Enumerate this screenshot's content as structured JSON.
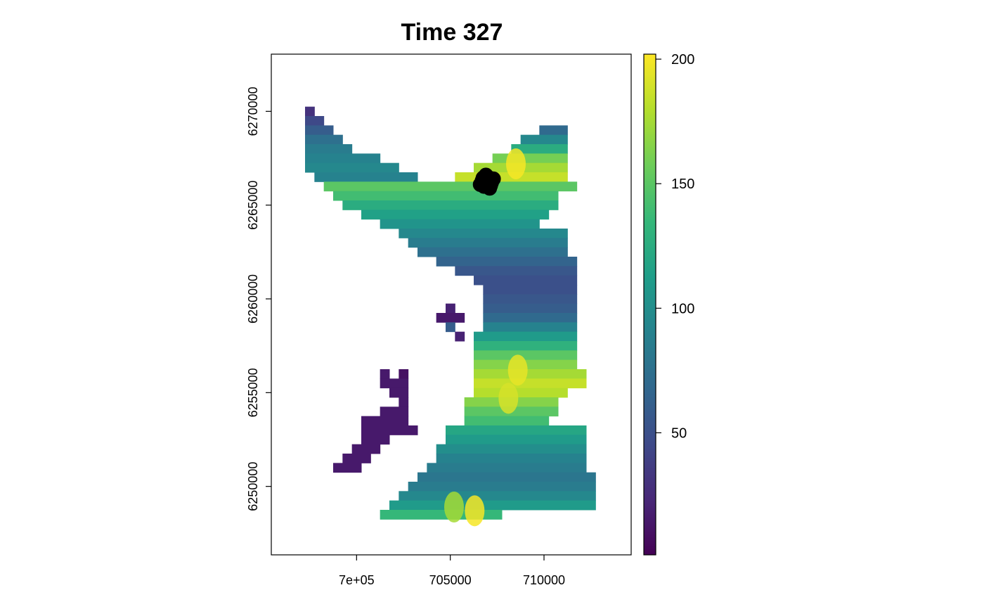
{
  "chart_data": {
    "type": "heatmap",
    "title": "Time 327",
    "xlabel": "",
    "ylabel": "",
    "xlim": [
      695450,
      714650
    ],
    "ylim": [
      6246350,
      6273050
    ],
    "x_ticks": [
      700000,
      705000,
      710000
    ],
    "x_tick_labels": [
      "7e+05",
      "705000",
      "710000"
    ],
    "y_ticks": [
      6250000,
      6255000,
      6260000,
      6265000,
      6270000
    ],
    "y_tick_labels": [
      "6250000",
      "6255000",
      "6260000",
      "6265000",
      "6270000"
    ],
    "color_scale": {
      "palette": "viridis",
      "min": 1,
      "max": 202,
      "ticks": [
        50,
        100,
        150,
        200
      ],
      "tick_labels": [
        "50",
        "100",
        "150",
        "200"
      ],
      "colors": [
        "#440154",
        "#482878",
        "#3E4A89",
        "#31688E",
        "#26828E",
        "#1F9E89",
        "#35B779",
        "#6DCD59",
        "#B4DE2C",
        "#FDE725"
      ]
    },
    "legend_position": "right",
    "grid": false,
    "raster_cell_size_m": 500,
    "raster_rows": [
      {
        "y": 6270000,
        "segments": [
          {
            "x0": 697250,
            "x1": 697750,
            "value": 30
          }
        ]
      },
      {
        "y": 6269500,
        "segments": [
          {
            "x0": 697250,
            "x1": 698250,
            "value": 45
          }
        ]
      },
      {
        "y": 6269000,
        "segments": [
          {
            "x0": 697250,
            "x1": 698750,
            "value": 60
          },
          {
            "x0": 709750,
            "x1": 711250,
            "value": 70
          }
        ]
      },
      {
        "y": 6268500,
        "segments": [
          {
            "x0": 697250,
            "x1": 699250,
            "value": 75
          },
          {
            "x0": 708750,
            "x1": 711250,
            "value": 95
          }
        ]
      },
      {
        "y": 6268000,
        "segments": [
          {
            "x0": 697250,
            "x1": 699750,
            "value": 85
          },
          {
            "x0": 708250,
            "x1": 711250,
            "value": 125
          }
        ]
      },
      {
        "y": 6267500,
        "segments": [
          {
            "x0": 697250,
            "x1": 701250,
            "value": 90
          },
          {
            "x0": 707250,
            "x1": 711250,
            "value": 160
          }
        ]
      },
      {
        "y": 6267000,
        "segments": [
          {
            "x0": 697250,
            "x1": 702250,
            "value": 95
          },
          {
            "x0": 706250,
            "x1": 711250,
            "value": 175
          }
        ]
      },
      {
        "y": 6266500,
        "segments": [
          {
            "x0": 697750,
            "x1": 703250,
            "value": 90
          },
          {
            "x0": 705250,
            "x1": 711250,
            "value": 185
          }
        ]
      },
      {
        "y": 6266000,
        "segments": [
          {
            "x0": 698250,
            "x1": 711750,
            "value": 150
          }
        ]
      },
      {
        "y": 6265500,
        "segments": [
          {
            "x0": 698750,
            "x1": 710750,
            "value": 140
          }
        ]
      },
      {
        "y": 6265000,
        "segments": [
          {
            "x0": 699250,
            "x1": 710750,
            "value": 125
          }
        ]
      },
      {
        "y": 6264500,
        "segments": [
          {
            "x0": 700250,
            "x1": 710250,
            "value": 115
          }
        ]
      },
      {
        "y": 6264000,
        "segments": [
          {
            "x0": 701250,
            "x1": 709750,
            "value": 105
          }
        ]
      },
      {
        "y": 6263500,
        "segments": [
          {
            "x0": 702250,
            "x1": 711250,
            "value": 95
          }
        ]
      },
      {
        "y": 6263000,
        "segments": [
          {
            "x0": 702750,
            "x1": 711250,
            "value": 85
          }
        ]
      },
      {
        "y": 6262500,
        "segments": [
          {
            "x0": 703250,
            "x1": 711250,
            "value": 75
          }
        ]
      },
      {
        "y": 6262000,
        "segments": [
          {
            "x0": 704250,
            "x1": 711750,
            "value": 65
          }
        ]
      },
      {
        "y": 6261500,
        "segments": [
          {
            "x0": 705250,
            "x1": 711750,
            "value": 55
          }
        ]
      },
      {
        "y": 6261000,
        "segments": [
          {
            "x0": 706250,
            "x1": 711750,
            "value": 50
          }
        ]
      },
      {
        "y": 6260500,
        "segments": [
          {
            "x0": 706750,
            "x1": 711750,
            "value": 50
          }
        ]
      },
      {
        "y": 6260000,
        "segments": [
          {
            "x0": 706750,
            "x1": 711750,
            "value": 55
          }
        ]
      },
      {
        "y": 6259500,
        "segments": [
          {
            "x0": 704750,
            "x1": 705250,
            "value": 20
          },
          {
            "x0": 706750,
            "x1": 711750,
            "value": 60
          }
        ]
      },
      {
        "y": 6259000,
        "segments": [
          {
            "x0": 704250,
            "x1": 705750,
            "value": 15
          },
          {
            "x0": 706750,
            "x1": 711750,
            "value": 70
          }
        ]
      },
      {
        "y": 6258500,
        "segments": [
          {
            "x0": 704750,
            "x1": 705250,
            "value": 60
          },
          {
            "x0": 706750,
            "x1": 711750,
            "value": 90
          }
        ]
      },
      {
        "y": 6258000,
        "segments": [
          {
            "x0": 705250,
            "x1": 705750,
            "value": 20
          },
          {
            "x0": 706250,
            "x1": 711750,
            "value": 110
          }
        ]
      },
      {
        "y": 6257500,
        "segments": [
          {
            "x0": 706250,
            "x1": 711750,
            "value": 130
          }
        ]
      },
      {
        "y": 6257000,
        "segments": [
          {
            "x0": 706250,
            "x1": 711750,
            "value": 150
          }
        ]
      },
      {
        "y": 6256500,
        "segments": [
          {
            "x0": 706250,
            "x1": 711750,
            "value": 165
          }
        ]
      },
      {
        "y": 6256000,
        "segments": [
          {
            "x0": 701250,
            "x1": 701750,
            "value": 15
          },
          {
            "x0": 702250,
            "x1": 702750,
            "value": 10
          },
          {
            "x0": 706250,
            "x1": 712250,
            "value": 175
          }
        ]
      },
      {
        "y": 6255500,
        "segments": [
          {
            "x0": 701250,
            "x1": 702750,
            "value": 15
          },
          {
            "x0": 706250,
            "x1": 712250,
            "value": 185
          }
        ]
      },
      {
        "y": 6255000,
        "segments": [
          {
            "x0": 701750,
            "x1": 702750,
            "value": 15
          },
          {
            "x0": 706250,
            "x1": 711250,
            "value": 180
          }
        ]
      },
      {
        "y": 6254500,
        "segments": [
          {
            "x0": 702250,
            "x1": 702750,
            "value": 15
          },
          {
            "x0": 705750,
            "x1": 710750,
            "value": 165
          }
        ]
      },
      {
        "y": 6254000,
        "segments": [
          {
            "x0": 701250,
            "x1": 702750,
            "value": 15
          },
          {
            "x0": 705750,
            "x1": 710750,
            "value": 150
          }
        ]
      },
      {
        "y": 6253500,
        "segments": [
          {
            "x0": 700250,
            "x1": 702750,
            "value": 15
          },
          {
            "x0": 705750,
            "x1": 710250,
            "value": 140
          }
        ]
      },
      {
        "y": 6253000,
        "segments": [
          {
            "x0": 700250,
            "x1": 703250,
            "value": 15
          },
          {
            "x0": 704750,
            "x1": 712250,
            "value": 120
          }
        ]
      },
      {
        "y": 6252500,
        "segments": [
          {
            "x0": 700250,
            "x1": 701750,
            "value": 15
          },
          {
            "x0": 704750,
            "x1": 712250,
            "value": 110
          }
        ]
      },
      {
        "y": 6252000,
        "segments": [
          {
            "x0": 699750,
            "x1": 701250,
            "value": 15
          },
          {
            "x0": 704250,
            "x1": 712250,
            "value": 100
          }
        ]
      },
      {
        "y": 6251500,
        "segments": [
          {
            "x0": 699250,
            "x1": 700750,
            "value": 15
          },
          {
            "x0": 704250,
            "x1": 712250,
            "value": 90
          }
        ]
      },
      {
        "y": 6251000,
        "segments": [
          {
            "x0": 698750,
            "x1": 700250,
            "value": 15
          },
          {
            "x0": 703750,
            "x1": 712250,
            "value": 85
          }
        ]
      },
      {
        "y": 6250500,
        "segments": [
          {
            "x0": 703250,
            "x1": 712750,
            "value": 80
          }
        ]
      },
      {
        "y": 6250000,
        "segments": [
          {
            "x0": 702750,
            "x1": 712750,
            "value": 85
          }
        ]
      },
      {
        "y": 6249500,
        "segments": [
          {
            "x0": 702250,
            "x1": 712750,
            "value": 95
          }
        ]
      },
      {
        "y": 6249000,
        "segments": [
          {
            "x0": 701750,
            "x1": 712750,
            "value": 110
          }
        ]
      },
      {
        "y": 6248500,
        "segments": [
          {
            "x0": 701250,
            "x1": 707750,
            "value": 135
          }
        ]
      }
    ],
    "hotspots": [
      {
        "x": 708500,
        "y": 6267200,
        "value": 200
      },
      {
        "x": 708600,
        "y": 6256200,
        "value": 195
      },
      {
        "x": 708100,
        "y": 6254700,
        "value": 190
      },
      {
        "x": 706300,
        "y": 6248700,
        "value": 200
      },
      {
        "x": 705200,
        "y": 6248900,
        "value": 175
      }
    ],
    "points": [
      {
        "x": 706700,
        "y": 6266300
      },
      {
        "x": 707000,
        "y": 6266500
      },
      {
        "x": 707200,
        "y": 6266200
      },
      {
        "x": 706800,
        "y": 6266000
      },
      {
        "x": 707100,
        "y": 6265900
      },
      {
        "x": 706900,
        "y": 6266600
      },
      {
        "x": 707300,
        "y": 6266400
      },
      {
        "x": 706600,
        "y": 6266100
      },
      {
        "x": 707000,
        "y": 6266200
      },
      {
        "x": 706900,
        "y": 6266400
      },
      {
        "x": 707150,
        "y": 6266050
      },
      {
        "x": 706750,
        "y": 6266450
      }
    ]
  }
}
